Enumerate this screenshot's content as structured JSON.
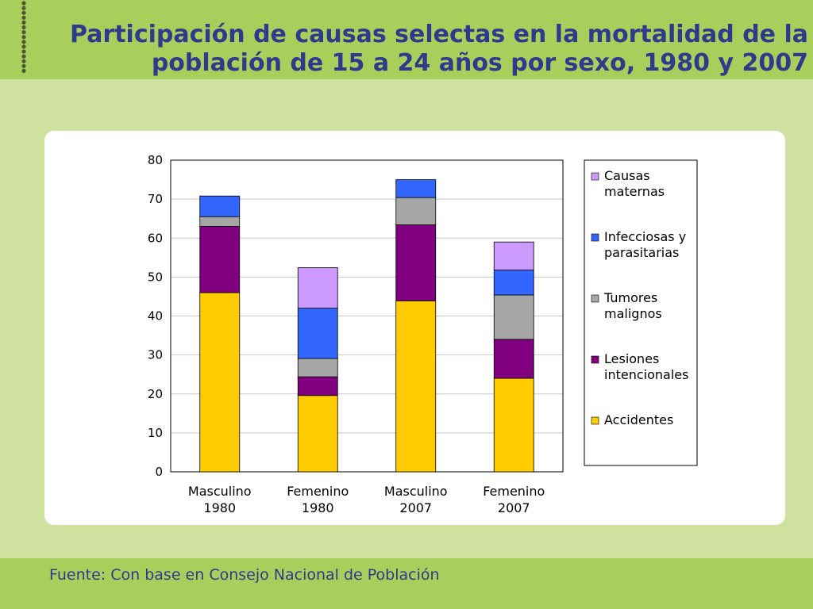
{
  "slide": {
    "title": "Participación de causas selectas en la mortalidad de la población de 15 a 24 años por sexo, 1980 y 2007",
    "source": "Fuente: Con base en Consejo Nacional de Población"
  },
  "theme": {
    "title_color": "#2e3a8c",
    "header_green": "#a8cf5c",
    "background_green": "#cfe09f",
    "dots_color": "#4a5a2e"
  },
  "chart_data": {
    "type": "bar",
    "stacked": true,
    "title": "",
    "xlabel": "",
    "ylabel": "",
    "ylim": [
      0,
      80
    ],
    "yticks": [
      0,
      10,
      20,
      30,
      40,
      50,
      60,
      70,
      80
    ],
    "grid": true,
    "legend_position": "right",
    "categories": [
      [
        "Masculino",
        "1980"
      ],
      [
        "Femenino",
        "1980"
      ],
      [
        "Masculino",
        "2007"
      ],
      [
        "Femenino",
        "2007"
      ]
    ],
    "series": [
      {
        "name": "Accidentes",
        "color": "#ffcc00",
        "values": [
          46,
          19.6,
          43.9,
          24
        ]
      },
      {
        "name": "Lesiones intencionales",
        "color": "#800080",
        "values": [
          17,
          4.8,
          19.5,
          10
        ]
      },
      {
        "name": "Tumores malignos",
        "color": "#a6a6a6",
        "values": [
          2.5,
          4.7,
          7,
          11.4
        ]
      },
      {
        "name": "Infecciosas y parasitarias",
        "color": "#3366ff",
        "values": [
          5.3,
          12.9,
          4.6,
          6.4
        ]
      },
      {
        "name": "Causas maternas",
        "color": "#cc99ff",
        "values": [
          0,
          10.4,
          0,
          7.2
        ]
      }
    ],
    "legend": [
      {
        "lines": [
          "Causas",
          "maternas"
        ],
        "color": "#cc99ff"
      },
      {
        "lines": [
          "Infecciosas y",
          "parasitarias"
        ],
        "color": "#3366ff"
      },
      {
        "lines": [
          "Tumores",
          "malignos"
        ],
        "color": "#a6a6a6"
      },
      {
        "lines": [
          "Lesiones",
          "intencionales"
        ],
        "color": "#800080"
      },
      {
        "lines": [
          "Accidentes"
        ],
        "color": "#ffcc00"
      }
    ]
  }
}
